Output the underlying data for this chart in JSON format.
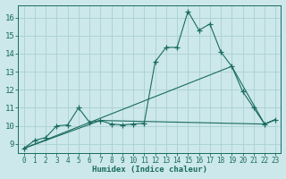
{
  "xlabel": "Humidex (Indice chaleur)",
  "bg_color": "#cce8ea",
  "grid_color": "#aad0d3",
  "line_color": "#1a6b60",
  "xlim": [
    -0.5,
    23.5
  ],
  "ylim": [
    8.5,
    16.7
  ],
  "xticks": [
    0,
    1,
    2,
    3,
    4,
    5,
    6,
    7,
    8,
    9,
    10,
    11,
    12,
    13,
    14,
    15,
    16,
    17,
    18,
    19,
    20,
    21,
    22,
    23
  ],
  "yticks": [
    9,
    10,
    11,
    12,
    13,
    14,
    15,
    16
  ],
  "line1_x": [
    0,
    1,
    2,
    3,
    4,
    5,
    6,
    7,
    8,
    9,
    10,
    11,
    12,
    13,
    14,
    15,
    16,
    17,
    18,
    19,
    20,
    21,
    22,
    23
  ],
  "line1_y": [
    8.75,
    9.2,
    9.35,
    10.0,
    10.05,
    11.0,
    10.2,
    10.3,
    10.1,
    10.05,
    10.1,
    10.15,
    13.55,
    14.35,
    14.35,
    16.35,
    15.3,
    15.65,
    14.1,
    13.3,
    11.9,
    11.0,
    10.1,
    10.35
  ],
  "line2_x": [
    0,
    7,
    22,
    23
  ],
  "line2_y": [
    8.75,
    10.3,
    10.1,
    10.35
  ],
  "line3_x": [
    0,
    19,
    22,
    23
  ],
  "line3_y": [
    8.75,
    13.3,
    10.1,
    10.35
  ]
}
